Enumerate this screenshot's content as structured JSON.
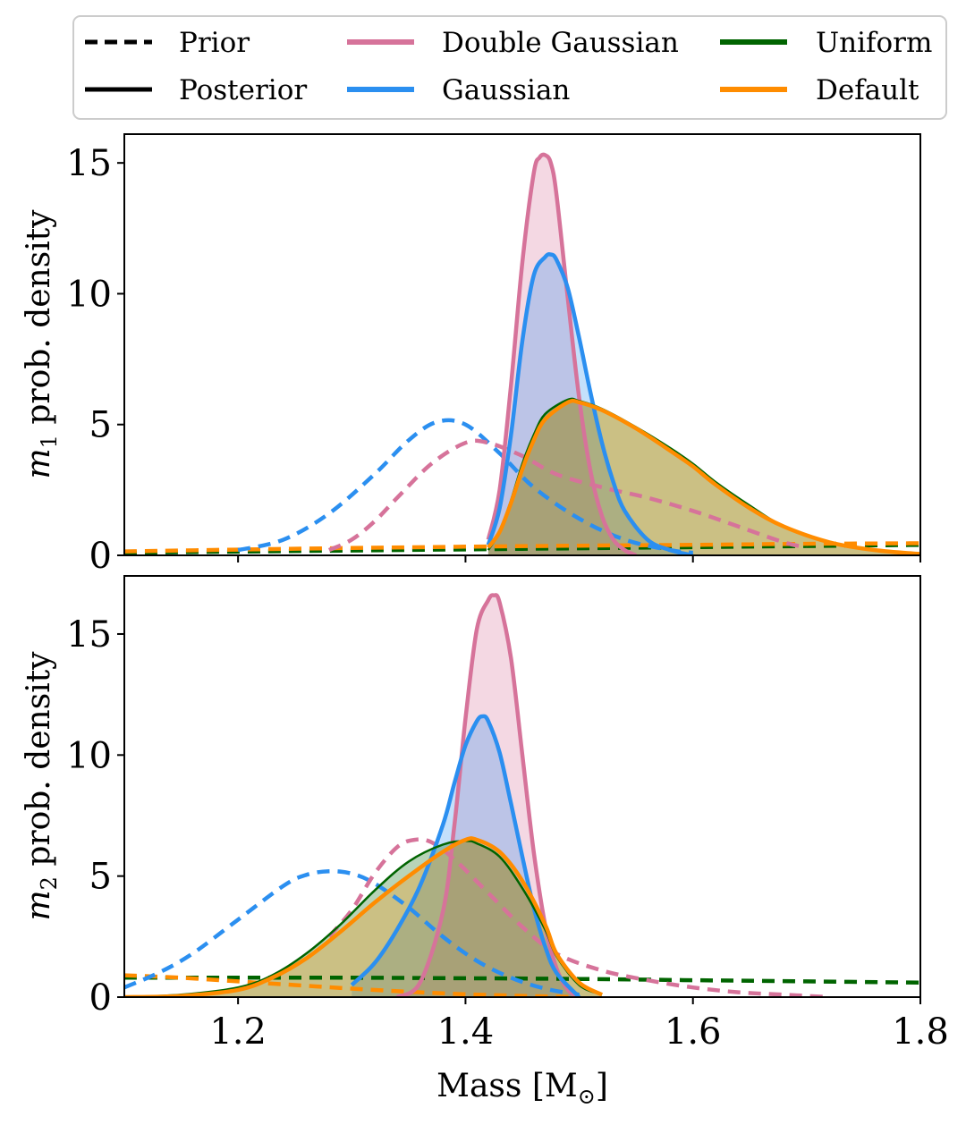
{
  "legend": {
    "line_styles": [
      {
        "key": "prior",
        "label": "Prior",
        "dash": true
      },
      {
        "key": "posterior",
        "label": "Posterior",
        "dash": false
      }
    ],
    "series": [
      {
        "key": "double_gaussian",
        "label": "Double Gaussian",
        "color": "#d6739a"
      },
      {
        "key": "gaussian",
        "label": "Gaussian",
        "color": "#2b8ff0"
      },
      {
        "key": "uniform",
        "label": "Uniform",
        "color": "#006400"
      },
      {
        "key": "default",
        "label": "Default",
        "color": "#ff8c00"
      }
    ]
  },
  "chart_data": [
    {
      "type": "line",
      "panel": "top",
      "ylabel_main": "m",
      "ylabel_sub": "1",
      "ylabel_rest": " prob. density",
      "xlim": [
        1.1,
        1.8
      ],
      "ylim": [
        0,
        16.1
      ],
      "xticks": [
        1.2,
        1.4,
        1.6,
        1.8
      ],
      "yticks": [
        0,
        5,
        10,
        15
      ],
      "ytick_labels": [
        "0",
        "5",
        "10",
        "15"
      ],
      "series": [
        {
          "key": "uniform",
          "name": "Uniform",
          "color": "#006400",
          "kind": "prior",
          "x": [
            1.1,
            1.8
          ],
          "y": [
            0.1,
            0.4
          ]
        },
        {
          "key": "default",
          "name": "Default",
          "color": "#ff8c00",
          "kind": "prior",
          "x": [
            1.1,
            1.2,
            1.3,
            1.4,
            1.5,
            1.6,
            1.7,
            1.8
          ],
          "y": [
            0.15,
            0.22,
            0.28,
            0.33,
            0.37,
            0.4,
            0.44,
            0.46
          ]
        },
        {
          "key": "gaussian",
          "name": "Gaussian",
          "color": "#2b8ff0",
          "kind": "prior",
          "x": [
            1.2,
            1.24,
            1.28,
            1.32,
            1.35,
            1.375,
            1.4,
            1.43,
            1.46,
            1.5,
            1.54,
            1.58,
            1.6
          ],
          "y": [
            0.2,
            0.6,
            1.6,
            3.1,
            4.4,
            5.1,
            5.0,
            3.9,
            2.6,
            1.4,
            0.6,
            0.2,
            0.1
          ]
        },
        {
          "key": "double_gaussian",
          "name": "Double Gaussian",
          "color": "#d6739a",
          "kind": "prior",
          "x": [
            1.28,
            1.3,
            1.32,
            1.34,
            1.37,
            1.4,
            1.42,
            1.45,
            1.48,
            1.52,
            1.56,
            1.6,
            1.64,
            1.68,
            1.7
          ],
          "y": [
            0.2,
            0.6,
            1.3,
            2.2,
            3.5,
            4.3,
            4.3,
            3.8,
            3.1,
            2.6,
            2.2,
            1.7,
            1.1,
            0.5,
            0.3
          ]
        },
        {
          "key": "double_gaussian",
          "name": "Double Gaussian",
          "color": "#d6739a",
          "kind": "posterior",
          "x": [
            1.42,
            1.43,
            1.44,
            1.45,
            1.46,
            1.465,
            1.47,
            1.475,
            1.48,
            1.49,
            1.5,
            1.51,
            1.52,
            1.53,
            1.54,
            1.55
          ],
          "y": [
            0.6,
            2.5,
            6.5,
            11.2,
            14.6,
            15.2,
            15.3,
            15.0,
            13.8,
            9.8,
            6.0,
            3.2,
            1.5,
            0.6,
            0.2,
            0.0
          ]
        },
        {
          "key": "gaussian",
          "name": "Gaussian",
          "color": "#2b8ff0",
          "kind": "posterior",
          "x": [
            1.42,
            1.43,
            1.44,
            1.45,
            1.46,
            1.47,
            1.475,
            1.48,
            1.49,
            1.5,
            1.51,
            1.52,
            1.53,
            1.54,
            1.56,
            1.58,
            1.6
          ],
          "y": [
            0.4,
            1.8,
            4.6,
            8.2,
            10.7,
            11.4,
            11.5,
            11.3,
            10.2,
            8.3,
            6.2,
            4.3,
            2.8,
            1.7,
            0.6,
            0.2,
            0.0
          ]
        },
        {
          "key": "uniform",
          "name": "Uniform",
          "color": "#006400",
          "kind": "posterior",
          "x": [
            1.42,
            1.43,
            1.44,
            1.45,
            1.46,
            1.47,
            1.49,
            1.5,
            1.52,
            1.55,
            1.58,
            1.6,
            1.62,
            1.65,
            1.68,
            1.72,
            1.76,
            1.8
          ],
          "y": [
            0.2,
            0.9,
            2.1,
            3.5,
            4.6,
            5.4,
            5.95,
            5.9,
            5.6,
            4.9,
            4.1,
            3.5,
            2.8,
            1.9,
            1.1,
            0.5,
            0.2,
            0.0
          ]
        },
        {
          "key": "default",
          "name": "Default",
          "color": "#ff8c00",
          "kind": "posterior",
          "x": [
            1.42,
            1.43,
            1.44,
            1.45,
            1.46,
            1.47,
            1.49,
            1.5,
            1.52,
            1.55,
            1.58,
            1.6,
            1.62,
            1.65,
            1.68,
            1.72,
            1.76,
            1.8
          ],
          "y": [
            0.3,
            0.9,
            2.0,
            3.3,
            4.4,
            5.2,
            5.85,
            5.85,
            5.55,
            4.85,
            4.0,
            3.4,
            2.7,
            1.8,
            1.1,
            0.5,
            0.2,
            0.05
          ]
        }
      ]
    },
    {
      "type": "line",
      "panel": "bottom",
      "ylabel_main": "m",
      "ylabel_sub": "2",
      "ylabel_rest": " prob. density",
      "xlabel": "Mass [M",
      "xlabel_sub": "⊙",
      "xlabel_end": "]",
      "xlim": [
        1.1,
        1.8
      ],
      "ylim": [
        0,
        17.4
      ],
      "xticks": [
        1.2,
        1.4,
        1.6,
        1.8
      ],
      "xtick_labels": [
        "1.2",
        "1.4",
        "1.6",
        "1.8"
      ],
      "yticks": [
        0,
        5,
        10,
        15
      ],
      "ytick_labels": [
        "0",
        "5",
        "10",
        "15"
      ],
      "series": [
        {
          "key": "uniform",
          "name": "Uniform",
          "color": "#006400",
          "kind": "prior",
          "x": [
            1.1,
            1.2,
            1.3,
            1.4,
            1.5,
            1.6,
            1.7,
            1.8
          ],
          "y": [
            0.8,
            0.8,
            0.8,
            0.78,
            0.75,
            0.7,
            0.65,
            0.6
          ]
        },
        {
          "key": "default",
          "name": "Default",
          "color": "#ff8c00",
          "kind": "prior",
          "x": [
            1.1,
            1.15,
            1.2,
            1.25,
            1.3,
            1.35,
            1.4,
            1.45,
            1.5
          ],
          "y": [
            0.9,
            0.8,
            0.65,
            0.5,
            0.35,
            0.22,
            0.12,
            0.05,
            0.0
          ]
        },
        {
          "key": "gaussian",
          "name": "Gaussian",
          "color": "#2b8ff0",
          "kind": "prior",
          "x": [
            1.1,
            1.13,
            1.16,
            1.2,
            1.24,
            1.26,
            1.28,
            1.3,
            1.32,
            1.35,
            1.38,
            1.41,
            1.44,
            1.47,
            1.5
          ],
          "y": [
            0.4,
            1.0,
            1.8,
            3.2,
            4.6,
            5.05,
            5.2,
            5.1,
            4.7,
            3.7,
            2.5,
            1.5,
            0.8,
            0.35,
            0.1
          ]
        },
        {
          "key": "double_gaussian",
          "name": "Double Gaussian",
          "color": "#d6739a",
          "kind": "prior",
          "x": [
            1.28,
            1.3,
            1.32,
            1.34,
            1.355,
            1.37,
            1.39,
            1.42,
            1.45,
            1.48,
            1.52,
            1.56,
            1.6,
            1.64,
            1.68,
            1.72
          ],
          "y": [
            2.5,
            3.6,
            5.1,
            6.2,
            6.5,
            6.4,
            5.7,
            4.3,
            2.9,
            1.8,
            1.1,
            0.7,
            0.4,
            0.2,
            0.1,
            0.0
          ]
        },
        {
          "key": "double_gaussian",
          "name": "Double Gaussian",
          "color": "#d6739a",
          "kind": "posterior",
          "x": [
            1.34,
            1.36,
            1.38,
            1.39,
            1.4,
            1.41,
            1.42,
            1.425,
            1.43,
            1.44,
            1.45,
            1.46,
            1.47,
            1.48,
            1.49,
            1.5
          ],
          "y": [
            0.0,
            0.6,
            3.5,
            7.0,
            11.5,
            15.2,
            16.4,
            16.6,
            16.3,
            14.0,
            10.0,
            6.0,
            3.0,
            1.2,
            0.3,
            0.0
          ]
        },
        {
          "key": "gaussian",
          "name": "Gaussian",
          "color": "#2b8ff0",
          "kind": "posterior",
          "x": [
            1.3,
            1.32,
            1.34,
            1.36,
            1.38,
            1.39,
            1.4,
            1.41,
            1.415,
            1.42,
            1.43,
            1.44,
            1.45,
            1.46,
            1.47,
            1.48,
            1.5
          ],
          "y": [
            0.5,
            1.4,
            2.8,
            4.6,
            7.1,
            8.8,
            10.4,
            11.4,
            11.6,
            11.4,
            10.1,
            8.0,
            5.8,
            3.7,
            2.1,
            1.0,
            0.0
          ]
        },
        {
          "key": "uniform",
          "name": "Uniform",
          "color": "#006400",
          "kind": "posterior",
          "x": [
            1.1,
            1.15,
            1.2,
            1.23,
            1.26,
            1.29,
            1.32,
            1.35,
            1.38,
            1.4,
            1.41,
            1.43,
            1.45,
            1.47,
            1.48,
            1.5,
            1.52
          ],
          "y": [
            0.0,
            0.1,
            0.4,
            0.9,
            1.8,
            3.0,
            4.4,
            5.6,
            6.3,
            6.45,
            6.35,
            5.8,
            4.5,
            2.8,
            1.7,
            0.5,
            0.1
          ]
        },
        {
          "key": "default",
          "name": "Default",
          "color": "#ff8c00",
          "kind": "posterior",
          "x": [
            1.1,
            1.15,
            1.2,
            1.23,
            1.26,
            1.29,
            1.32,
            1.35,
            1.38,
            1.4,
            1.41,
            1.43,
            1.45,
            1.47,
            1.48,
            1.5,
            1.52
          ],
          "y": [
            0.0,
            0.05,
            0.3,
            0.8,
            1.6,
            2.7,
            3.9,
            5.0,
            6.0,
            6.5,
            6.5,
            6.0,
            4.8,
            3.0,
            1.8,
            0.6,
            0.1
          ]
        }
      ]
    }
  ]
}
